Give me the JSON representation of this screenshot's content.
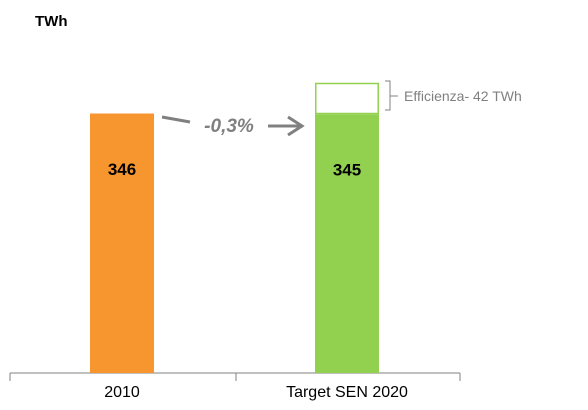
{
  "chart_data": {
    "type": "stacked_bar",
    "y_label": "TWh",
    "categories": [
      "2010",
      "Target SEN 2020"
    ],
    "colors": [
      "#f7962f",
      "#92d050"
    ],
    "series": [
      {
        "values": [
          346,
          345
        ]
      },
      {
        "name": "Efficienza- 42 TWh",
        "color": "#92d050",
        "values": [
          null,
          42
        ],
        "outline": true
      }
    ],
    "annotations": [
      "-0,3%"
    ],
    "ylim": [
      0,
      400
    ]
  }
}
